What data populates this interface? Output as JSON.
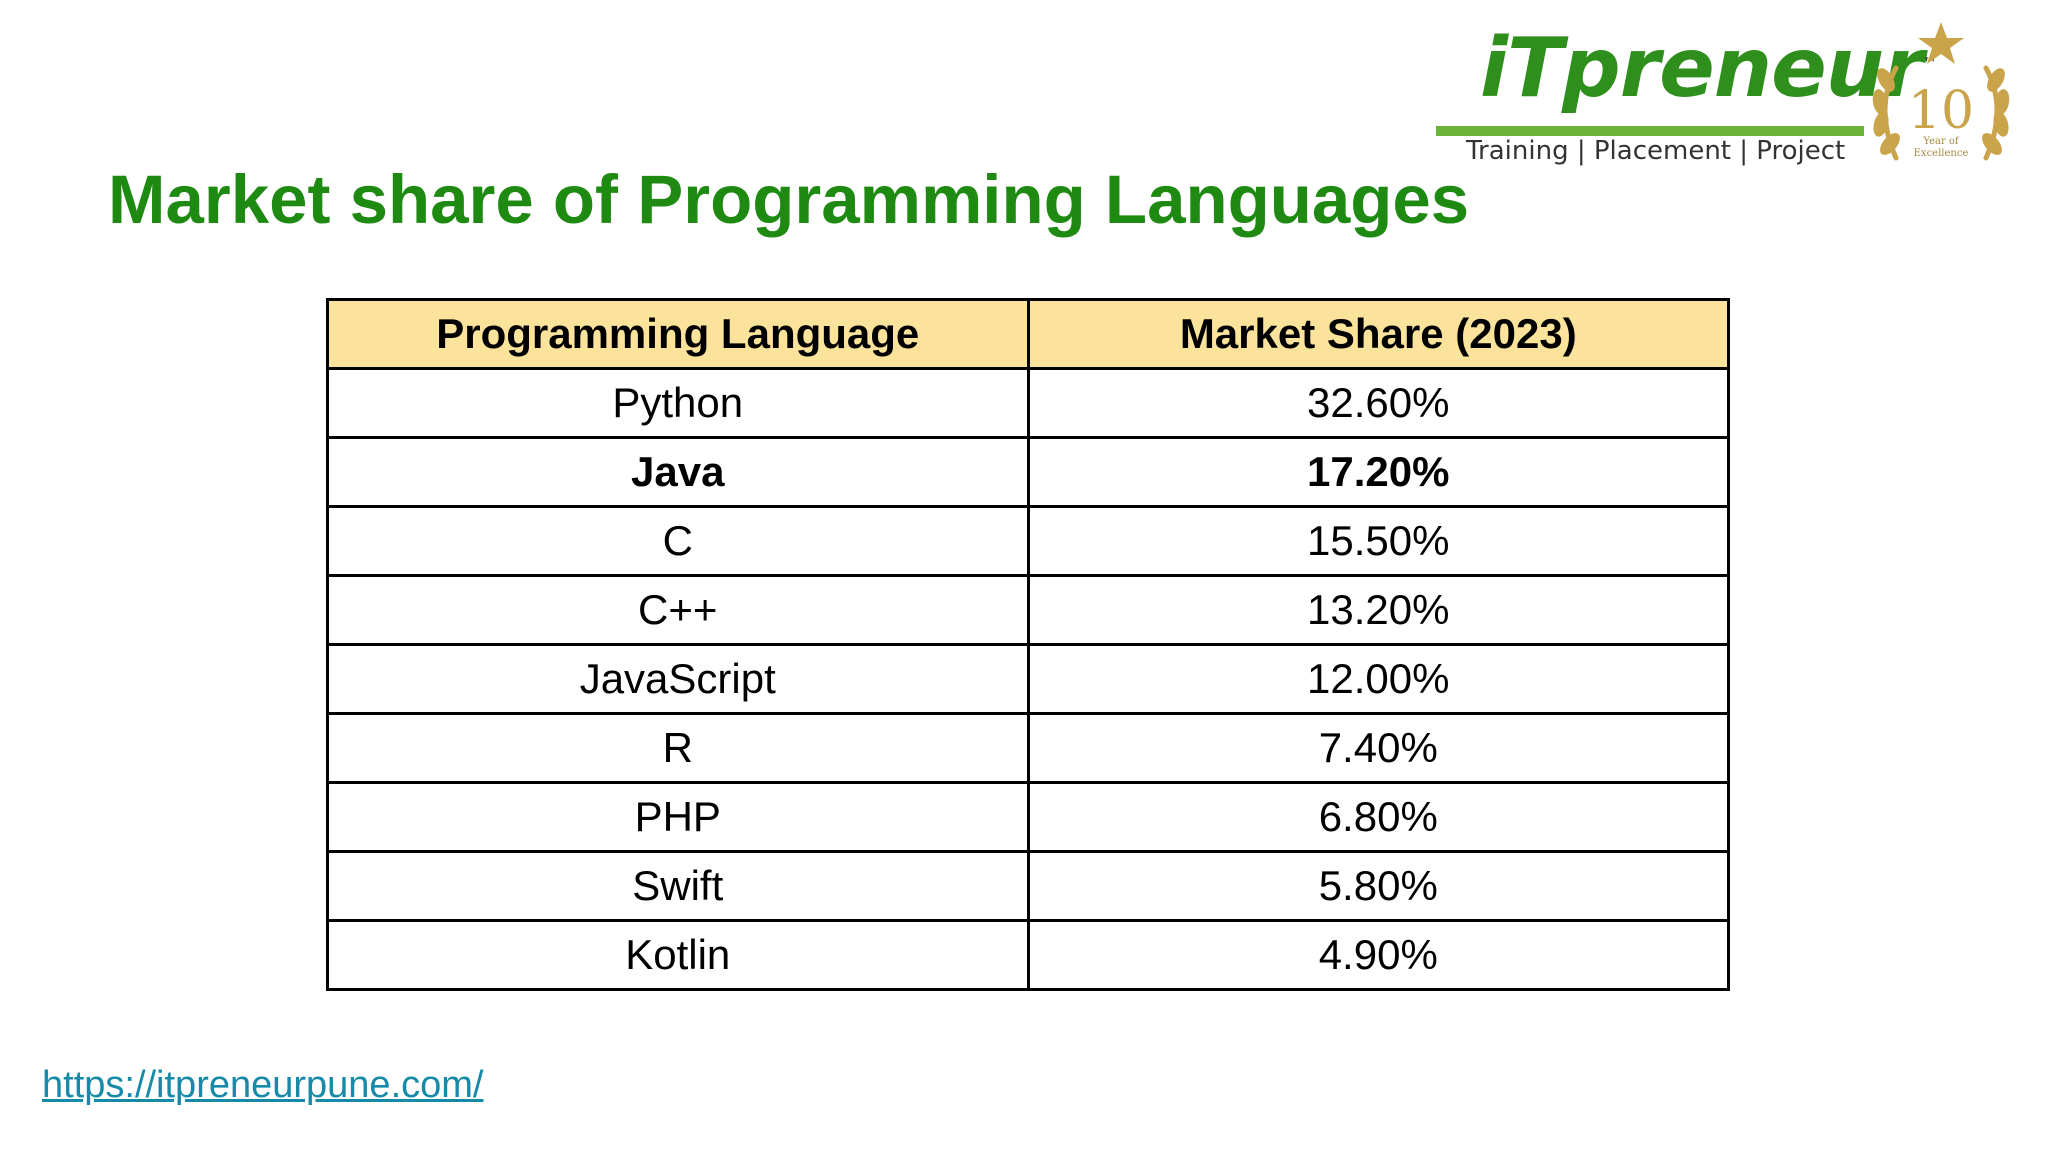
{
  "title": "Market share of Programming Languages",
  "logo": {
    "name_prefix": "iT",
    "name_suffix": "preneur",
    "trademark": "™",
    "tagline": "Training | Placement | Project",
    "badge_number": "10",
    "badge_text_line1": "Year of",
    "badge_text_line2": "Excellence"
  },
  "table": {
    "headers": [
      "Programming Language",
      "Market Share (2023)"
    ],
    "rows": [
      {
        "language": "Python",
        "share": "32.60%",
        "bold": false
      },
      {
        "language": "Java",
        "share": "17.20%",
        "bold": true
      },
      {
        "language": "C",
        "share": "15.50%",
        "bold": false
      },
      {
        "language": "C++",
        "share": "13.20%",
        "bold": false
      },
      {
        "language": "JavaScript",
        "share": "12.00%",
        "bold": false
      },
      {
        "language": "R",
        "share": "7.40%",
        "bold": false
      },
      {
        "language": "PHP",
        "share": "6.80%",
        "bold": false
      },
      {
        "language": "Swift",
        "share": "5.80%",
        "bold": false
      },
      {
        "language": "Kotlin",
        "share": "4.90%",
        "bold": false
      }
    ]
  },
  "footer": {
    "link_text": "https://itpreneurpune.com/"
  },
  "colors": {
    "title": "#1e8a12",
    "header_fill": "#fbe39b",
    "link": "#168aa8",
    "brand_green": "#2f8f1c",
    "badge_gold": "#c9a44a"
  }
}
